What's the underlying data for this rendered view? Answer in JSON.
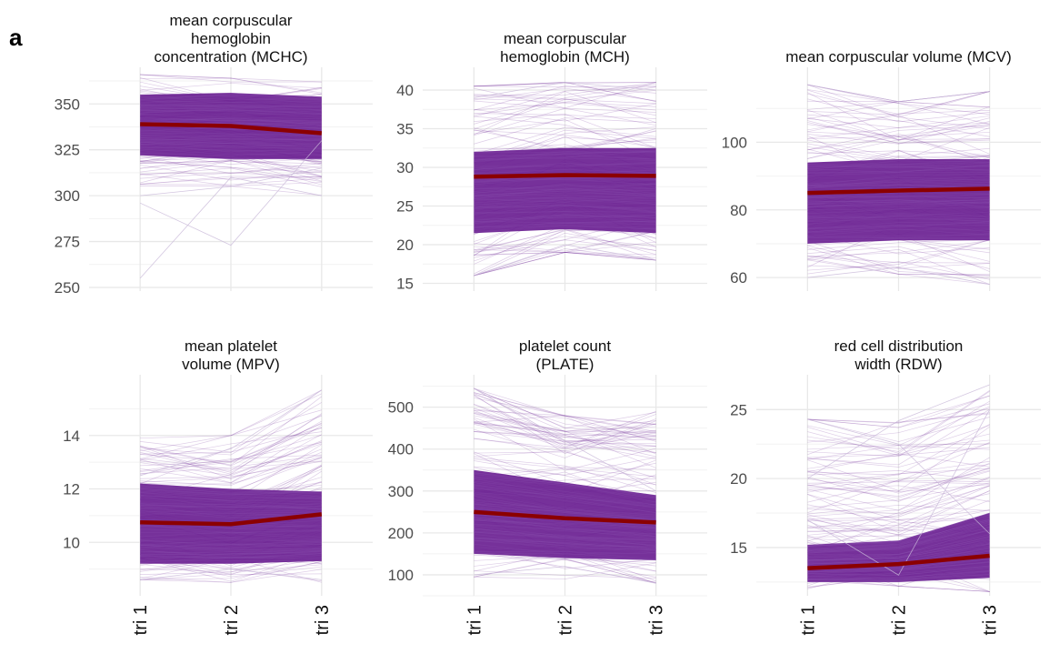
{
  "panel_label": "a",
  "colors": {
    "line": "#6a1f91",
    "mean": "#8b0000",
    "grid_major": "#e8e8e8",
    "grid_minor": "#f2f2f2",
    "text": "#4d4d4d"
  },
  "chart_data": [
    {
      "type": "line",
      "title": "mean corpuscular\nhemoglobin\nconcentration (MCHC)",
      "categories": [
        "tri 1",
        "tri 2",
        "tri 3"
      ],
      "ylim": [
        248,
        366
      ],
      "yticks": [
        250,
        275,
        300,
        325,
        350
      ],
      "band": {
        "low": [
          322,
          320,
          320
        ],
        "high": [
          355,
          356,
          354
        ]
      },
      "spread": {
        "low": [
          305,
          305,
          300
        ],
        "high": [
          366,
          364,
          362
        ]
      },
      "outliers": [
        [
          255,
          310,
          300
        ],
        [
          296,
          273,
          330
        ],
        [
          300,
          305,
          315
        ]
      ],
      "series": [
        {
          "values": [
            339,
            338,
            334
          ]
        }
      ]
    },
    {
      "type": "line",
      "title": "mean corpuscular\nhemoglobin (MCH)",
      "categories": [
        "tri 1",
        "tri 2",
        "tri 3"
      ],
      "ylim": [
        14,
        42
      ],
      "yticks": [
        15,
        20,
        25,
        30,
        35,
        40
      ],
      "band": {
        "low": [
          21.5,
          22,
          21.5
        ],
        "high": [
          32,
          32.5,
          32.5
        ]
      },
      "spread": {
        "low": [
          16,
          19,
          18
        ],
        "high": [
          40.5,
          41,
          41
        ]
      },
      "outliers": [
        [
          16,
          20,
          18
        ],
        [
          39,
          41,
          40
        ]
      ],
      "series": [
        {
          "values": [
            28.8,
            29.0,
            28.9
          ]
        }
      ]
    },
    {
      "type": "line",
      "title": "mean corpuscular volume (MCV)",
      "categories": [
        "tri 1",
        "tri 2",
        "tri 3"
      ],
      "ylim": [
        56,
        120
      ],
      "yticks": [
        60,
        80,
        100
      ],
      "band": {
        "low": [
          70,
          71,
          71
        ],
        "high": [
          94,
          95,
          95
        ]
      },
      "spread": {
        "low": [
          59,
          61,
          58
        ],
        "high": [
          117,
          112,
          115
        ]
      },
      "outliers": [
        [
          117,
          112,
          115
        ],
        [
          60,
          63,
          58
        ]
      ],
      "series": [
        {
          "values": [
            85,
            85.7,
            86.3
          ]
        }
      ]
    },
    {
      "type": "line",
      "title": "mean platelet\nvolume (MPV)",
      "categories": [
        "tri 1",
        "tri 2",
        "tri 3"
      ],
      "ylim": [
        8,
        16
      ],
      "yticks": [
        10,
        12,
        14
      ],
      "band": {
        "low": [
          9.2,
          9.2,
          9.3
        ],
        "high": [
          12.2,
          12.0,
          11.9
        ]
      },
      "spread": {
        "low": [
          8.6,
          8.5,
          8.5
        ],
        "high": [
          13.9,
          14.0,
          15.7
        ]
      },
      "outliers": [
        [
          12.5,
          13.5,
          15.7
        ],
        [
          8.6,
          9.0,
          8.6
        ]
      ],
      "series": [
        {
          "values": [
            10.75,
            10.68,
            11.05
          ]
        }
      ]
    },
    {
      "type": "line",
      "title": "platelet count\n(PLATE)",
      "categories": [
        "tri 1",
        "tri 2",
        "tri 3"
      ],
      "ylim": [
        50,
        560
      ],
      "yticks": [
        100,
        200,
        300,
        400,
        500
      ],
      "band": {
        "low": [
          150,
          140,
          135
        ],
        "high": [
          350,
          320,
          290
        ]
      },
      "spread": {
        "low": [
          95,
          90,
          80
        ],
        "high": [
          545,
          480,
          490
        ]
      },
      "outliers": [
        [
          545,
          420,
          300
        ],
        [
          100,
          120,
          80
        ]
      ],
      "series": [
        {
          "values": [
            250,
            235,
            225
          ]
        }
      ]
    },
    {
      "type": "line",
      "title": "red cell distribution\nwidth (RDW)",
      "categories": [
        "tri 1",
        "tri 2",
        "tri 3"
      ],
      "ylim": [
        11.5,
        27
      ],
      "yticks": [
        15,
        20,
        25
      ],
      "band": {
        "low": [
          12.5,
          12.5,
          12.8
        ],
        "high": [
          15.2,
          15.5,
          17.5
        ]
      },
      "spread": {
        "low": [
          12.0,
          12.2,
          11.8
        ],
        "high": [
          24.3,
          24.2,
          26.8
        ]
      },
      "outliers": [
        [
          24.3,
          22.5,
          16
        ],
        [
          20,
          24.2,
          26.8
        ],
        [
          17,
          13,
          25
        ]
      ],
      "series": [
        {
          "values": [
            13.5,
            13.8,
            14.4
          ]
        }
      ]
    }
  ]
}
